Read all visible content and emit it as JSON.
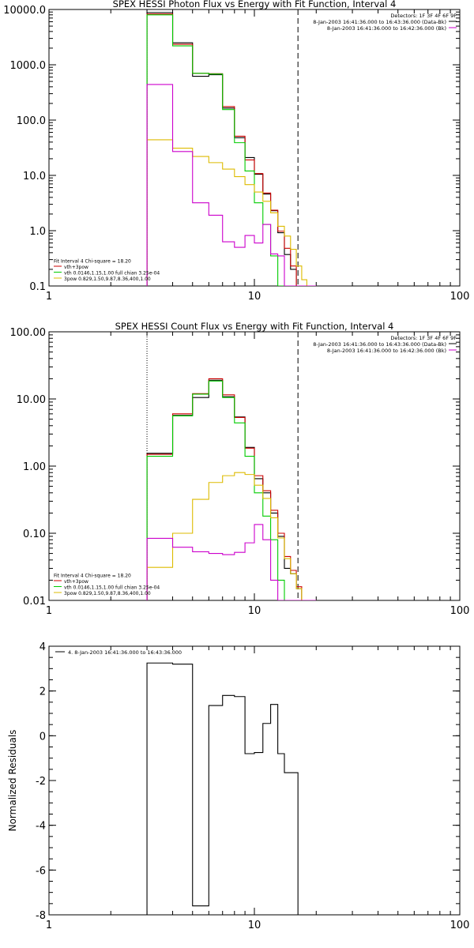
{
  "chart_data": [
    {
      "type": "line",
      "title": "SPEX HESSI Photon Flux vs Energy with Fit Function, Interval 4",
      "xscale": "log",
      "yscale": "log",
      "xlim": [
        1,
        100
      ],
      "ylim": [
        0.1,
        10000
      ],
      "xticks": [
        "1",
        "10",
        "100"
      ],
      "yticks": [
        "0.1",
        "1.0",
        "10.0",
        "100.0",
        "1000.0",
        "10000.0"
      ],
      "ytick_values": [
        0.1,
        1,
        10,
        100,
        1000,
        10000
      ],
      "vlines": [
        {
          "x": 3,
          "style": "dotted"
        },
        {
          "x": 16.3,
          "style": "dashed"
        }
      ],
      "legend_top": [
        {
          "text": "Detectors: 1F 3F 4F 6F 9F",
          "color": ""
        },
        {
          "text": "8-Jan-2003 16:41:36.000 to 16:43:36.000 (Data-Bk)",
          "color": "#000000"
        },
        {
          "text": "8-Jan-2003 16:41:36.000 to 16:42:36.000 (Bk)",
          "color": "#cc00cc"
        }
      ],
      "legend_bottom": [
        {
          "text": "Fit Interval  4    Chi-square = 18.20",
          "color": ""
        },
        {
          "text": "vth+3pow",
          "color": "#cc0000"
        },
        {
          "text": "vth 0.0146,1.15,1.00  full chian 3.25e-04",
          "color": "#00cc00"
        },
        {
          "text": "3pow 0.829,1.50,9.87,8.36,400,1.00",
          "color": "#ddbb00"
        }
      ],
      "x_edges": [
        3,
        4,
        5,
        6,
        7,
        8,
        9,
        10,
        11,
        12,
        13,
        14,
        15,
        16,
        17,
        18,
        20
      ],
      "series": [
        {
          "color": "#000000",
          "values": [
            8800,
            2500,
            620,
            660,
            165,
            48,
            21,
            10.5,
            4.6,
            2.3,
            0.92,
            0.37,
            0.2,
            0.1,
            0.1,
            0.1
          ]
        },
        {
          "color": "#cc0000",
          "values": [
            8300,
            2350,
            700,
            690,
            175,
            51,
            19,
            10.8,
            4.8,
            2.35,
            0.98,
            0.48,
            0.23,
            0.1,
            0.1,
            0.1
          ]
        },
        {
          "color": "#00cc00",
          "values": [
            8000,
            2200,
            700,
            680,
            155,
            39,
            12,
            3.2,
            1.3,
            0.35,
            0.1,
            0.1,
            0.1,
            0.1,
            0.1,
            0.1
          ]
        },
        {
          "color": "#ddbb00",
          "values": [
            44,
            31,
            22,
            17,
            13,
            9.5,
            6.8,
            5.0,
            3.4,
            2.1,
            1.2,
            0.8,
            0.46,
            0.23,
            0.13,
            0.1
          ]
        },
        {
          "color": "#cc00cc",
          "values": [
            440,
            27,
            3.2,
            1.9,
            0.63,
            0.5,
            0.82,
            0.6,
            1.3,
            0.38,
            0.35,
            0.1,
            0.1,
            0.1,
            0.1,
            0.1
          ]
        }
      ]
    },
    {
      "type": "line",
      "title": "SPEX HESSI Count Flux vs Energy with Fit Function, Interval 4",
      "xscale": "log",
      "yscale": "log",
      "xlim": [
        1,
        100
      ],
      "ylim": [
        0.01,
        100
      ],
      "xticks": [
        "1",
        "10",
        "100"
      ],
      "yticks": [
        "0.01",
        "0.10",
        "1.00",
        "10.00",
        "100.00"
      ],
      "ytick_values": [
        0.01,
        0.1,
        1,
        10,
        100
      ],
      "vlines": [
        {
          "x": 3,
          "style": "dotted"
        },
        {
          "x": 16.3,
          "style": "dashed"
        }
      ],
      "legend_top": [
        {
          "text": "Detectors: 1F 3F 4F 6F 9F",
          "color": ""
        },
        {
          "text": "8-Jan-2003 16:41:36.000 to 16:43:36.000 (Data-Bk)",
          "color": "#000000"
        },
        {
          "text": "8-Jan-2003 16:41:36.000 to 16:42:36.000 (Bk)",
          "color": "#cc00cc"
        }
      ],
      "legend_bottom": [
        {
          "text": "Fit Interval  4    Chi-square = 18.20",
          "color": ""
        },
        {
          "text": "vth+3pow",
          "color": "#cc0000"
        },
        {
          "text": "vth 0.0146,1.15,1.00  full chian 3.25e-04",
          "color": "#00cc00"
        },
        {
          "text": "3pow 0.829,1.50,9.87,8.36,400,1.00",
          "color": "#ddbb00"
        }
      ],
      "x_edges": [
        3,
        4,
        5,
        6,
        7,
        8,
        9,
        10,
        11,
        12,
        13,
        14,
        15,
        16,
        17,
        18,
        20
      ],
      "series": [
        {
          "color": "#000000",
          "values": [
            1.55,
            5.7,
            10.5,
            19,
            10.8,
            5.4,
            1.9,
            0.65,
            0.4,
            0.2,
            0.09,
            0.03,
            0.025,
            0.015,
            0.01,
            0.01
          ]
        },
        {
          "color": "#cc0000",
          "values": [
            1.5,
            6.0,
            12,
            20,
            11.5,
            5.3,
            1.85,
            0.72,
            0.43,
            0.22,
            0.1,
            0.045,
            0.028,
            0.016,
            0.01,
            0.01
          ]
        },
        {
          "color": "#00cc00",
          "values": [
            1.4,
            5.6,
            11.8,
            18.5,
            10.5,
            4.4,
            1.4,
            0.4,
            0.18,
            0.08,
            0.02,
            0.01,
            0.01,
            0.01,
            0.01,
            0.01
          ]
        },
        {
          "color": "#ddbb00",
          "values": [
            0.031,
            0.1,
            0.32,
            0.57,
            0.72,
            0.8,
            0.75,
            0.52,
            0.33,
            0.17,
            0.085,
            0.042,
            0.025,
            0.015,
            0.01,
            0.01
          ]
        },
        {
          "color": "#cc00cc",
          "values": [
            0.084,
            0.062,
            0.053,
            0.05,
            0.048,
            0.052,
            0.072,
            0.135,
            0.08,
            0.02,
            0.01,
            0.01,
            0.01,
            0.01,
            0.01,
            0.01
          ]
        }
      ]
    },
    {
      "type": "line",
      "title": "",
      "ylabel": "Normalized Residuals",
      "xscale": "log",
      "yscale": "linear",
      "xlim": [
        1,
        100
      ],
      "ylim": [
        -8,
        4
      ],
      "xticks": [
        "1",
        "10",
        "100"
      ],
      "yticks": [
        "-8",
        "-6",
        "-4",
        "-2",
        "0",
        "2",
        "4"
      ],
      "ytick_values": [
        -8,
        -6,
        -4,
        -2,
        0,
        2,
        4
      ],
      "legend_top": [
        {
          "text": "4.  8-Jan-2003 16:41:36.000 to 16:43:36.000",
          "color": "#000000"
        }
      ],
      "x_edges": [
        3,
        4,
        5,
        6,
        7,
        8,
        9,
        10,
        11,
        12,
        13,
        14,
        15,
        16.3
      ],
      "series": [
        {
          "color": "#000000",
          "values": [
            3.25,
            3.2,
            -7.6,
            1.35,
            1.8,
            1.75,
            -0.8,
            -0.75,
            0.55,
            1.4,
            -0.8,
            -1.65,
            -1.65
          ]
        }
      ]
    }
  ]
}
